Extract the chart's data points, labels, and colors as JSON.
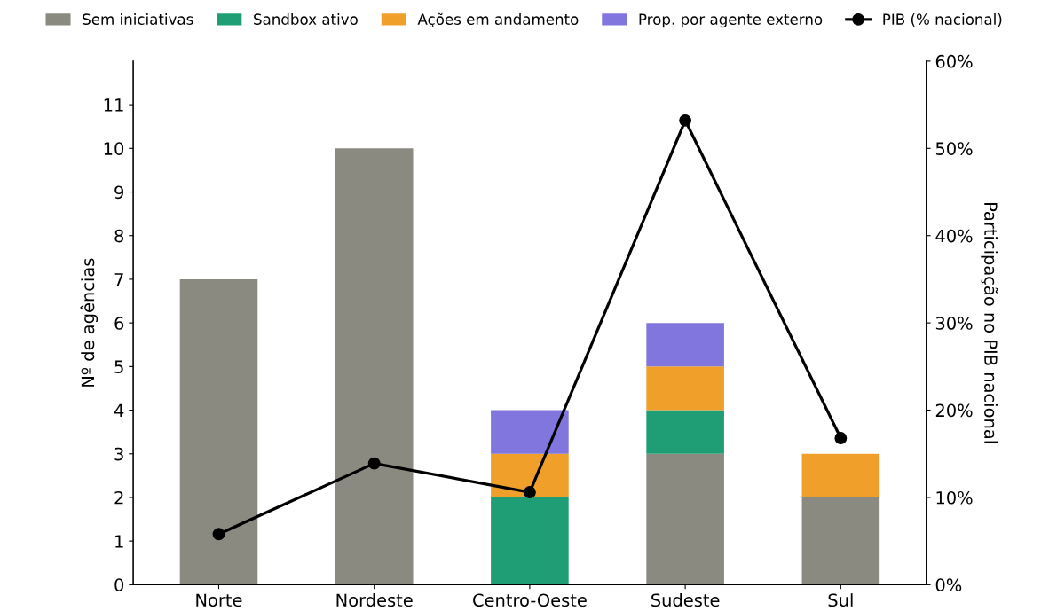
{
  "chart_data": {
    "type": "bar",
    "stacked": true,
    "categories": [
      "Norte",
      "Nordeste",
      "Centro-Oeste",
      "Sudeste",
      "Sul"
    ],
    "series": [
      {
        "name": "Sem iniciativas",
        "color": "#8a8a80",
        "values": [
          7,
          10,
          0,
          3,
          2
        ]
      },
      {
        "name": "Sandbox ativo",
        "color": "#1f9e76",
        "values": [
          0,
          0,
          2,
          1,
          0
        ]
      },
      {
        "name": "Ações em andamento",
        "color": "#f0a02a",
        "values": [
          0,
          0,
          1,
          1,
          1
        ]
      },
      {
        "name": "Prop. por agente externo",
        "color": "#8076dd",
        "values": [
          0,
          0,
          1,
          1,
          0
        ]
      },
      {
        "name": "PIB (% nacional)",
        "type": "line",
        "axis": "y2",
        "color": "#000000",
        "marker": "circle",
        "values": [
          5.8,
          13.9,
          10.6,
          53.2,
          16.8
        ]
      }
    ],
    "ylabel": "Nº de agências",
    "y2label": "Participação no PIB nacional",
    "ylim": [
      0,
      12
    ],
    "yticks": [
      0,
      1,
      2,
      3,
      4,
      5,
      6,
      7,
      8,
      9,
      10,
      11
    ],
    "y2lim": [
      0,
      60
    ],
    "y2ticks": [
      {
        "value": 0,
        "label": "0%"
      },
      {
        "value": 10,
        "label": "10%"
      },
      {
        "value": 20,
        "label": "20%"
      },
      {
        "value": 30,
        "label": "30%"
      },
      {
        "value": 40,
        "label": "40%"
      },
      {
        "value": 50,
        "label": "50%"
      },
      {
        "value": 60,
        "label": "60%"
      }
    ],
    "legend": "top",
    "grid": false
  }
}
